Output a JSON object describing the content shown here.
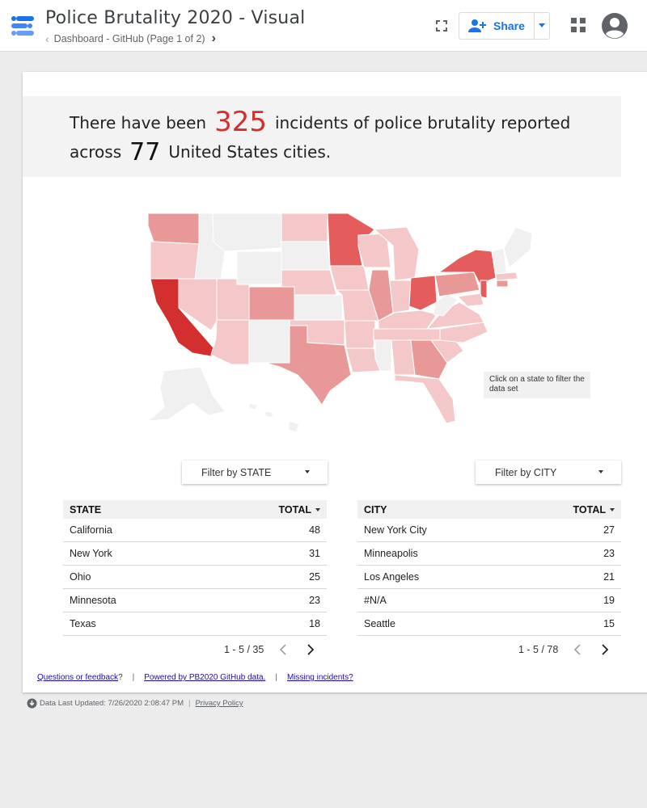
{
  "header": {
    "title": "Police Brutality 2020 - Visual",
    "breadcrumb": "Dashboard - GitHub (Page 1 of 2)",
    "share_label": "Share"
  },
  "banner": {
    "pre": "There have been",
    "incidents": "325",
    "mid": "incidents of police brutality reported across",
    "cities": "77",
    "post": "United States cities."
  },
  "map": {
    "note": "Click on a state to filter the data set",
    "colors": {
      "highest": "#d32f2f",
      "high": "#e45c5c",
      "mid": "#e99898",
      "low": "#f4c8c8",
      "none": "#f0f0f0"
    }
  },
  "filters": {
    "state_label": "Filter by STATE",
    "city_label": "Filter by CITY"
  },
  "state_table": {
    "col_name": "STATE",
    "col_total": "TOTAL",
    "rows": [
      {
        "name": "California",
        "total": "48"
      },
      {
        "name": "New York",
        "total": "31"
      },
      {
        "name": "Ohio",
        "total": "25"
      },
      {
        "name": "Minnesota",
        "total": "23"
      },
      {
        "name": "Texas",
        "total": "18"
      }
    ],
    "pagination": "1 - 5 / 35"
  },
  "city_table": {
    "col_name": "CITY",
    "col_total": "TOTAL",
    "rows": [
      {
        "name": "New York City",
        "total": "27"
      },
      {
        "name": "Minneapolis",
        "total": "23"
      },
      {
        "name": "Los Angeles",
        "total": "21"
      },
      {
        "name": "#N/A",
        "total": "19"
      },
      {
        "name": "Seattle",
        "total": "15"
      }
    ],
    "pagination": "1 - 5 / 78"
  },
  "footer": {
    "questions": "Questions or feedback",
    "questions_suffix": "?",
    "powered": "Powered by PB2020 GitHub data.",
    "missing": "Missing incidents?",
    "updated": "Data Last Updated: 7/26/2020 2:08:47 PM",
    "privacy": "Privacy Policy"
  }
}
